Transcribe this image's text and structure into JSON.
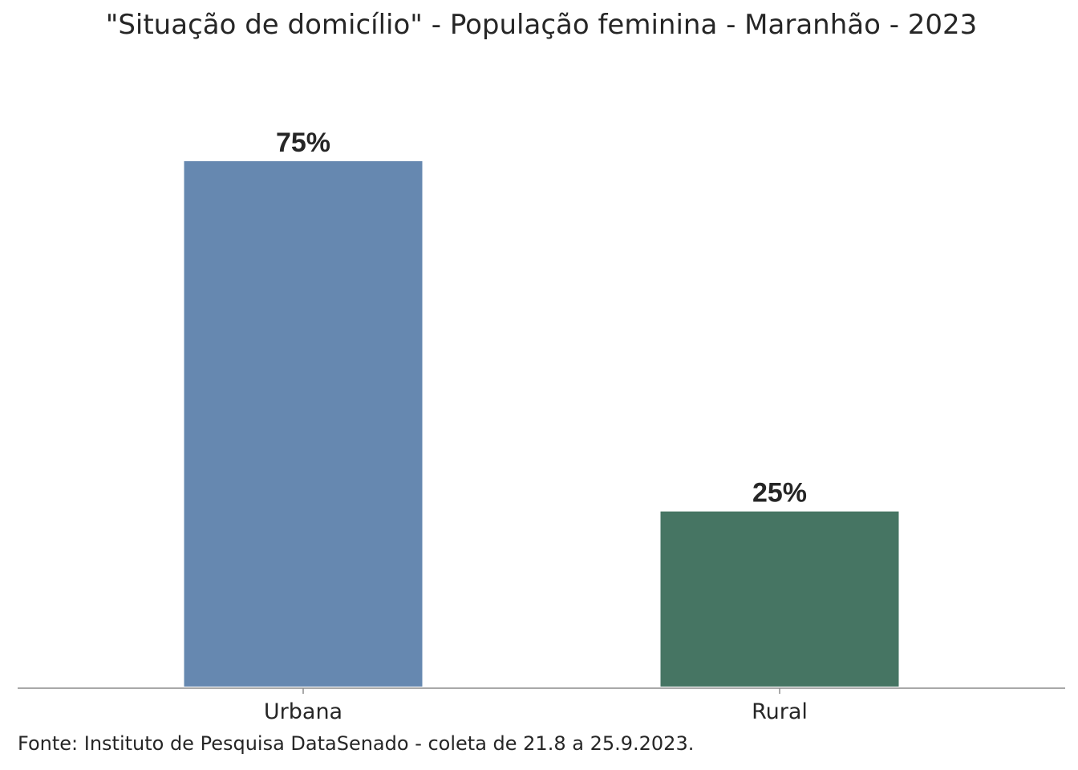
{
  "chart_data": {
    "type": "bar",
    "title": "\"Situação de domicílio\" - População feminina - Maranhão - 2023",
    "categories": [
      "Urbana",
      "Rural"
    ],
    "values": [
      75,
      25
    ],
    "value_labels": [
      "75%",
      "25%"
    ],
    "colors": [
      "#6688b0",
      "#467563"
    ],
    "ylim": [
      0,
      75
    ],
    "grid": false,
    "legend": "none",
    "xlabel": "",
    "ylabel": ""
  },
  "source_note": "Fonte: Instituto de Pesquisa DataSenado - coleta de 21.8 a 25.9.2023."
}
